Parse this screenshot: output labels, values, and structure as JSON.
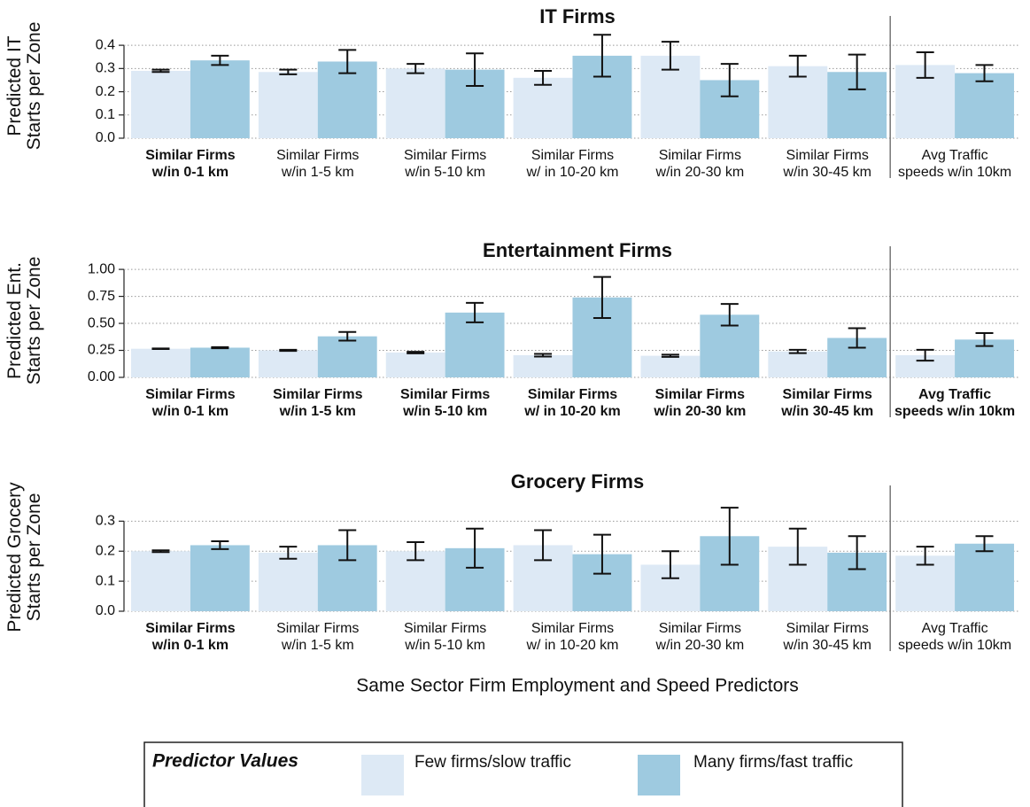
{
  "chart_data": [
    {
      "type": "bar",
      "title": "IT Firms",
      "ylabel": [
        "Predicted IT",
        "Starts per Zone"
      ],
      "categories": [
        [
          "Similar Firms",
          "w/in 0-1 km"
        ],
        [
          "Similar Firms",
          "w/in 1-5 km"
        ],
        [
          "Similar Firms",
          "w/in 5-10 km"
        ],
        [
          "Similar Firms",
          "w/ in 10-20 km"
        ],
        [
          "Similar Firms",
          "w/in 20-30 km"
        ],
        [
          "Similar Firms",
          "w/in 30-45 km"
        ],
        [
          "Avg Traffic",
          "speeds w/in 10km"
        ]
      ],
      "highlight": [
        true,
        false,
        false,
        false,
        false,
        false,
        false
      ],
      "highlight_color": "#ff0000",
      "series": [
        {
          "name": "Few firms/slow traffic",
          "color": "#dde9f5",
          "values": [
            0.29,
            0.285,
            0.3,
            0.26,
            0.355,
            0.31,
            0.315
          ],
          "errors": [
            0.005,
            0.01,
            0.02,
            0.03,
            0.06,
            0.045,
            0.055
          ]
        },
        {
          "name": "Many firms/fast traffic",
          "color": "#9ecae0",
          "values": [
            0.335,
            0.33,
            0.295,
            0.355,
            0.25,
            0.285,
            0.28
          ],
          "errors": [
            0.02,
            0.05,
            0.07,
            0.09,
            0.07,
            0.075,
            0.035
          ]
        }
      ],
      "ylim": [
        0,
        0.45
      ],
      "yticks": [
        {
          "value": 0,
          "label": "0.0"
        },
        0.1,
        0.2,
        0.3,
        0.4
      ],
      "grid": true
    },
    {
      "type": "bar",
      "title": "Entertainment Firms",
      "ylabel": [
        "Predicted Ent.",
        "Starts per Zone"
      ],
      "categories": [
        [
          "Similar Firms",
          "w/in 0-1 km"
        ],
        [
          "Similar Firms",
          "w/in 1-5 km"
        ],
        [
          "Similar Firms",
          "w/in 5-10 km"
        ],
        [
          "Similar Firms",
          "w/ in 10-20 km"
        ],
        [
          "Similar Firms",
          "w/in 20-30 km"
        ],
        [
          "Similar Firms",
          "w/in 30-45 km"
        ],
        [
          "Avg Traffic",
          "speeds w/in 10km"
        ]
      ],
      "highlight": [
        true,
        true,
        true,
        true,
        true,
        true,
        true
      ],
      "highlight_color": "#ff0000",
      "series": [
        {
          "name": "Few firms/slow traffic",
          "color": "#dde9f5",
          "values": [
            0.265,
            0.25,
            0.23,
            0.205,
            0.2,
            0.24,
            0.205
          ],
          "errors": [
            0.003,
            0.005,
            0.007,
            0.012,
            0.01,
            0.015,
            0.05
          ]
        },
        {
          "name": "Many firms/fast traffic",
          "color": "#9ecae0",
          "values": [
            0.275,
            0.38,
            0.6,
            0.74,
            0.58,
            0.365,
            0.35
          ],
          "errors": [
            0.005,
            0.04,
            0.09,
            0.19,
            0.1,
            0.09,
            0.06
          ]
        }
      ],
      "ylim": [
        0,
        1.05
      ],
      "yticks": [
        {
          "value": 0,
          "label": "0.00"
        },
        0.25,
        {
          "value": 0.5,
          "label": "0.50"
        },
        0.75,
        {
          "value": 1,
          "label": "1.00"
        }
      ],
      "grid": true
    },
    {
      "type": "bar",
      "title": "Grocery Firms",
      "ylabel": [
        "Predicted Grocery",
        "Starts per Zone"
      ],
      "categories": [
        [
          "Similar Firms",
          "w/in 0-1 km"
        ],
        [
          "Similar Firms",
          "w/in 1-5 km"
        ],
        [
          "Similar Firms",
          "w/in 5-10 km"
        ],
        [
          "Similar Firms",
          "w/ in 10-20 km"
        ],
        [
          "Similar Firms",
          "w/in 20-30 km"
        ],
        [
          "Similar Firms",
          "w/in 30-45 km"
        ],
        [
          "Avg Traffic",
          "speeds w/in 10km"
        ]
      ],
      "highlight": [
        true,
        false,
        false,
        false,
        false,
        false,
        false
      ],
      "highlight_color": "#ff0000",
      "series": [
        {
          "name": "Few firms/slow traffic",
          "color": "#dde9f5",
          "values": [
            0.2,
            0.195,
            0.2,
            0.22,
            0.155,
            0.215,
            0.185
          ],
          "errors": [
            0.003,
            0.02,
            0.03,
            0.05,
            0.045,
            0.06,
            0.03
          ]
        },
        {
          "name": "Many firms/fast traffic",
          "color": "#9ecae0",
          "values": [
            0.22,
            0.22,
            0.21,
            0.19,
            0.25,
            0.195,
            0.225
          ],
          "errors": [
            0.013,
            0.05,
            0.065,
            0.065,
            0.095,
            0.055,
            0.025
          ]
        }
      ],
      "ylim": [
        0,
        0.36
      ],
      "yticks": [
        {
          "value": 0,
          "label": "0.0"
        },
        0.1,
        0.2,
        0.3
      ],
      "grid": true,
      "xlabel": "Same Sector Firm Employment and Speed Predictors",
      "legend_title": "Predictor Values"
    }
  ]
}
